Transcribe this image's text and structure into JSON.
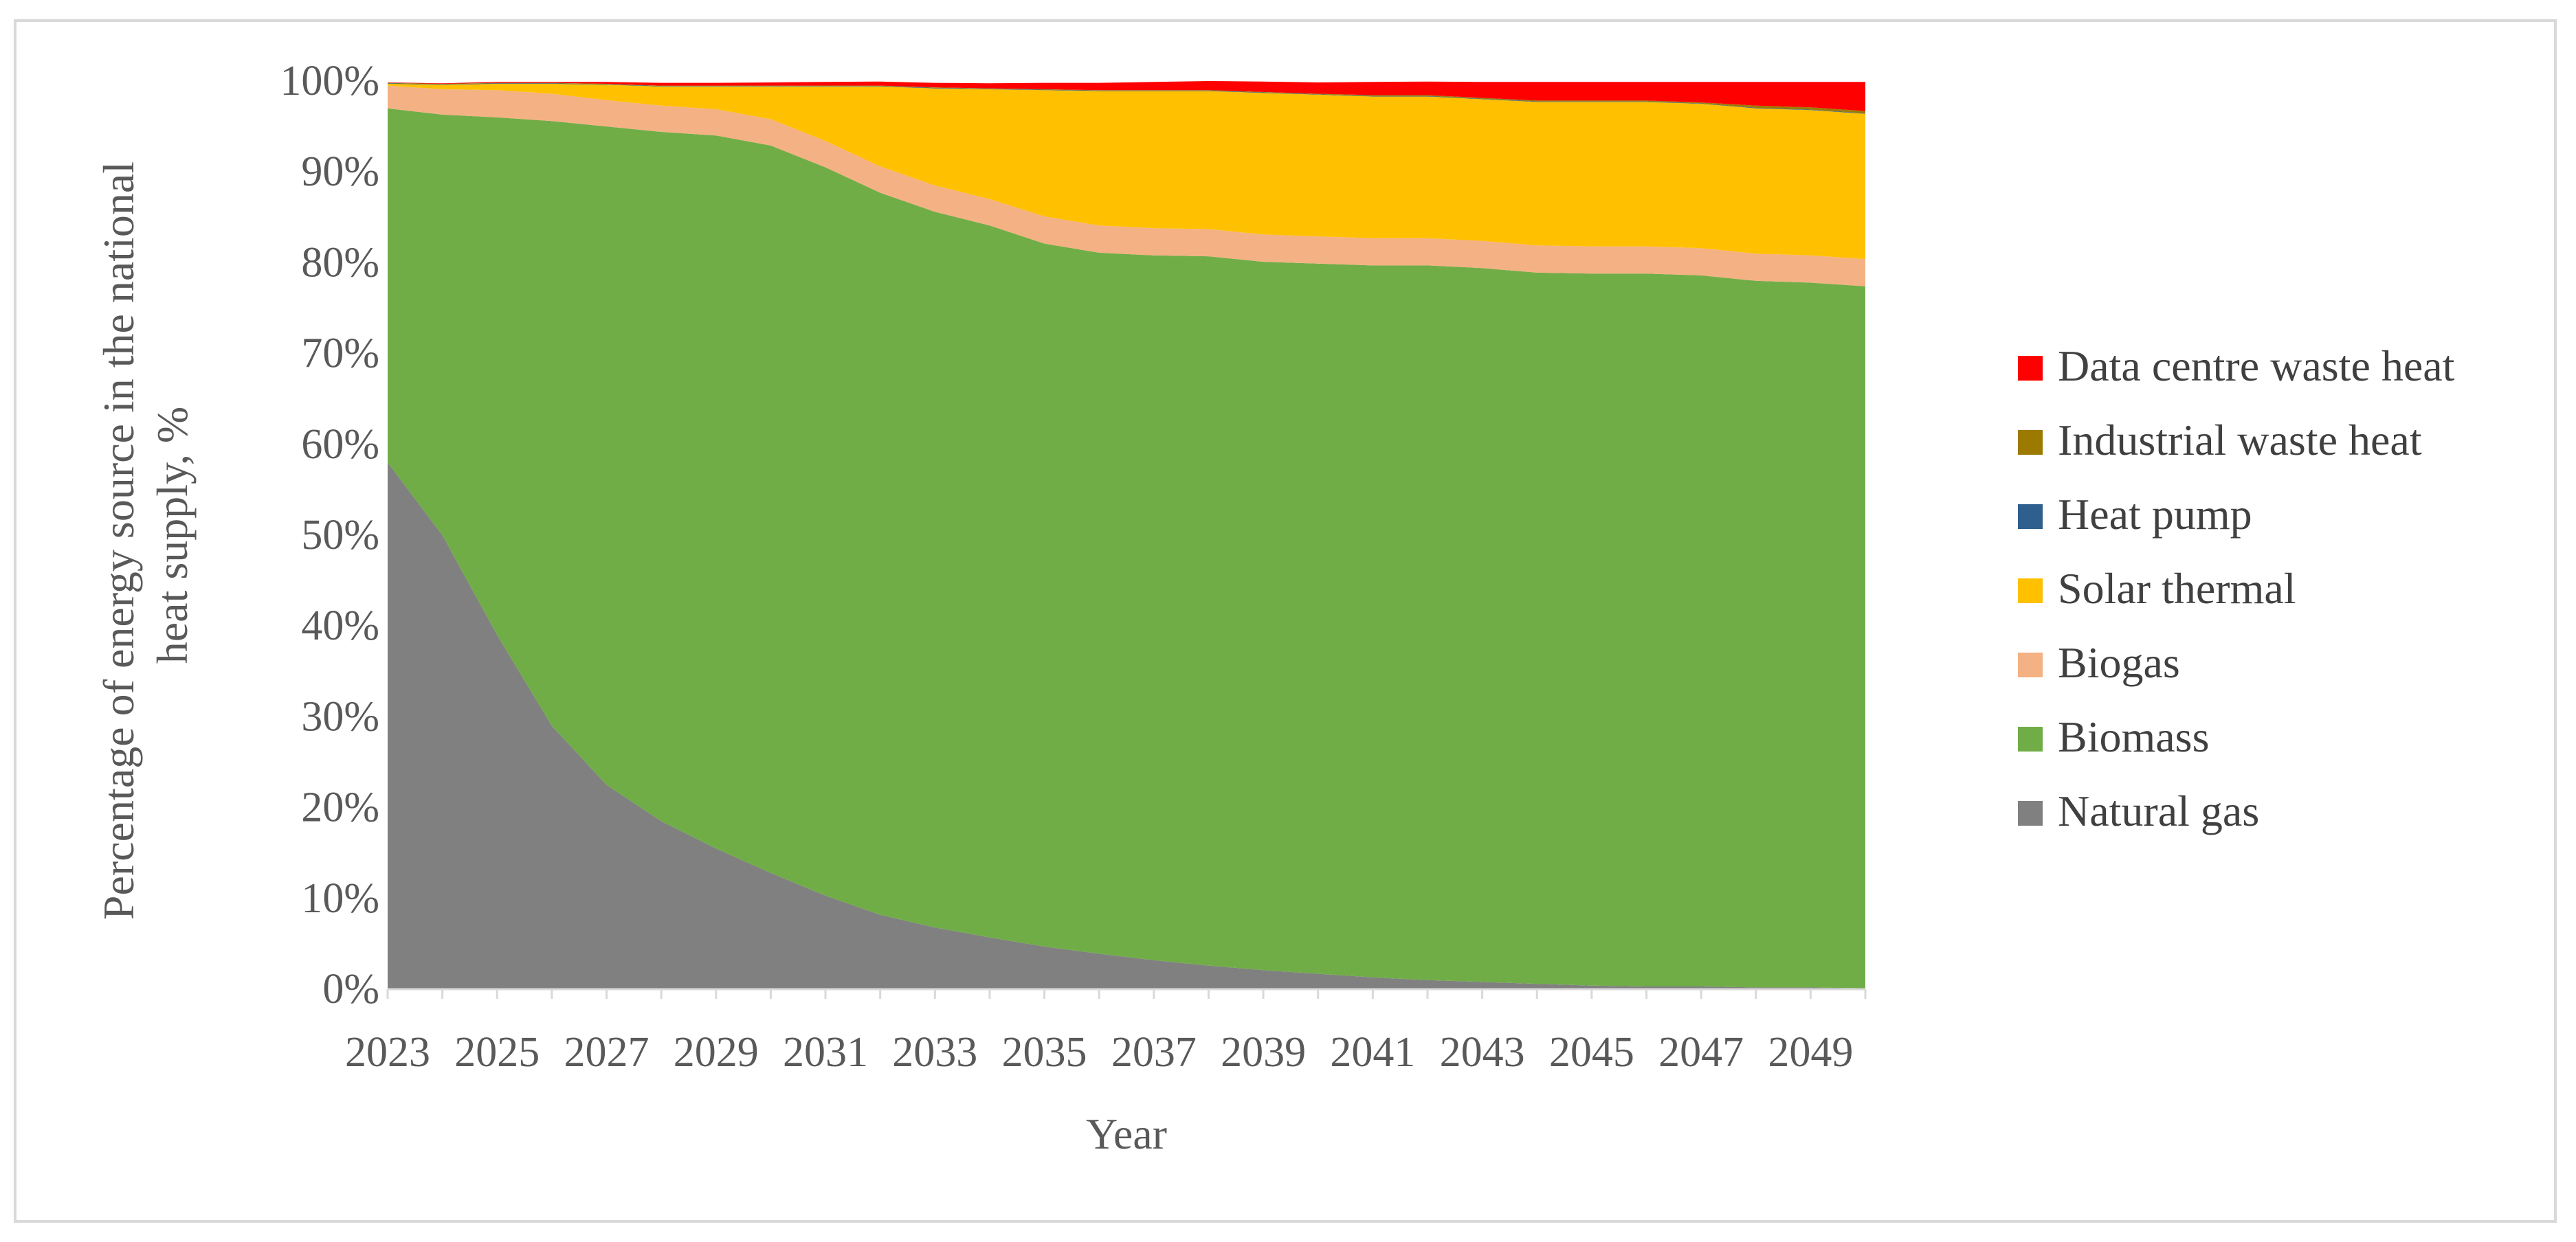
{
  "chart_data": {
    "type": "area",
    "stacked": true,
    "title": "",
    "xlabel": "Year",
    "ylabel_lines": [
      "Percentage of energy source in the national",
      "heat supply, %"
    ],
    "ylim": [
      0,
      100
    ],
    "y_tick_labels": [
      "0%",
      "10%",
      "20%",
      "30%",
      "40%",
      "50%",
      "60%",
      "70%",
      "80%",
      "90%",
      "100%"
    ],
    "x_tick_labels": [
      "2023",
      "2025",
      "2027",
      "2029",
      "2031",
      "2033",
      "2035",
      "2037",
      "2039",
      "2041",
      "2043",
      "2045",
      "2047",
      "2049"
    ],
    "x": [
      2023,
      2024,
      2025,
      2026,
      2027,
      2028,
      2029,
      2030,
      2031,
      2032,
      2033,
      2034,
      2035,
      2036,
      2037,
      2038,
      2039,
      2040,
      2041,
      2042,
      2043,
      2044,
      2045,
      2046,
      2047,
      2048,
      2049,
      2050
    ],
    "legend_position": "right",
    "grid": false,
    "series": [
      {
        "name": "Natural gas",
        "color": "#808080",
        "values": [
          58,
          50,
          39,
          29,
          22.5,
          18.5,
          15.5,
          12.8,
          10.3,
          8.2,
          6.8,
          5.7,
          4.7,
          3.9,
          3.2,
          2.6,
          2.1,
          1.7,
          1.3,
          1.0,
          0.8,
          0.6,
          0.4,
          0.3,
          0.3,
          0.2,
          0.2,
          0.1
        ]
      },
      {
        "name": "Biomass",
        "color": "#70ad47",
        "values": [
          39,
          46.3,
          57,
          66.6,
          72.5,
          75.9,
          78.5,
          80.1,
          80.2,
          79.5,
          78.8,
          78.4,
          77.4,
          77.2,
          77.6,
          78.1,
          78.0,
          78.2,
          78.4,
          78.7,
          78.6,
          78.3,
          78.4,
          78.5,
          78.3,
          77.8,
          77.6,
          77.3
        ]
      },
      {
        "name": "Biogas",
        "color": "#f4b183",
        "values": [
          2.5,
          2.8,
          3.0,
          3.0,
          2.9,
          2.9,
          2.9,
          2.9,
          2.9,
          2.9,
          2.9,
          2.9,
          3.0,
          3.0,
          3.0,
          3.0,
          3.0,
          3.0,
          3.0,
          3.0,
          3.0,
          3.0,
          3.0,
          3.0,
          3.0,
          3.0,
          3.0,
          3.0
        ]
      },
      {
        "name": "Solar thermal",
        "color": "#ffc000",
        "values": [
          0.2,
          0.5,
          0.7,
          1.1,
          1.7,
          2.1,
          2.5,
          3.6,
          6.0,
          8.8,
          10.7,
          12.1,
          13.9,
          14.8,
          15.1,
          15.2,
          15.6,
          15.6,
          15.6,
          15.6,
          15.6,
          15.8,
          15.9,
          15.9,
          15.9,
          16.0,
          16.0,
          16.0
        ]
      },
      {
        "name": "Heat pump",
        "color": "#2e5f8e",
        "values": [
          0.05,
          0.05,
          0.05,
          0.05,
          0.05,
          0.05,
          0.05,
          0.05,
          0.05,
          0.05,
          0.05,
          0.05,
          0.05,
          0.05,
          0.05,
          0.05,
          0.05,
          0.05,
          0.05,
          0.05,
          0.05,
          0.05,
          0.05,
          0.05,
          0.05,
          0.05,
          0.05,
          0.05
        ]
      },
      {
        "name": "Industrial waste heat",
        "color": "#9c7a00",
        "values": [
          0.05,
          0.05,
          0.05,
          0.05,
          0.05,
          0.05,
          0.05,
          0.05,
          0.05,
          0.05,
          0.05,
          0.05,
          0.05,
          0.05,
          0.05,
          0.05,
          0.05,
          0.05,
          0.1,
          0.1,
          0.1,
          0.1,
          0.1,
          0.1,
          0.1,
          0.25,
          0.25,
          0.25
        ]
      },
      {
        "name": "Data centre waste heat",
        "color": "#ff0000",
        "values": [
          0.05,
          0.05,
          0.1,
          0.1,
          0.2,
          0.3,
          0.3,
          0.35,
          0.4,
          0.45,
          0.5,
          0.55,
          0.7,
          0.8,
          0.9,
          1.0,
          1.15,
          1.25,
          1.45,
          1.5,
          1.75,
          2.05,
          2.05,
          2.05,
          2.25,
          2.6,
          2.8,
          3.2
        ]
      }
    ]
  }
}
